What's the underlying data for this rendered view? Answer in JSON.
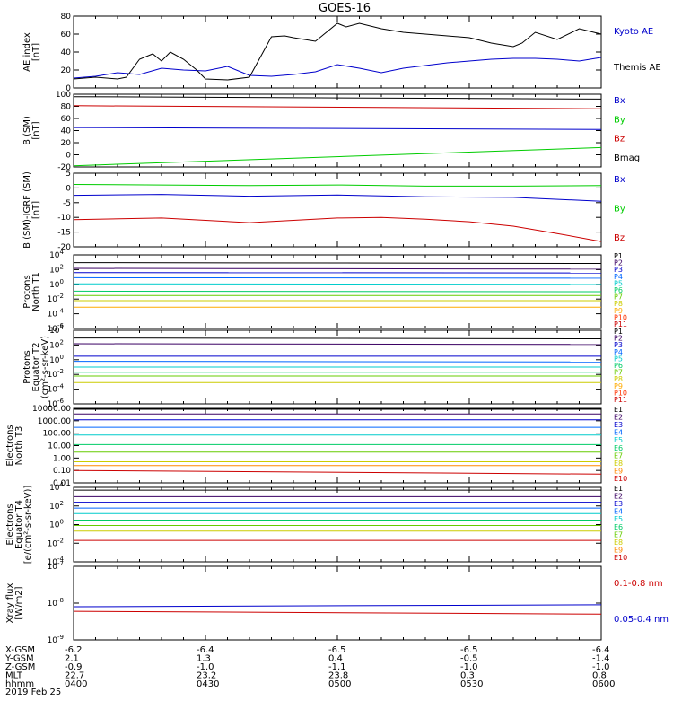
{
  "title": "GOES-16",
  "chart_data": [
    {
      "type": "line",
      "panel": "ae",
      "ylabel": [
        "AE index",
        "[nT]"
      ],
      "ylim": [
        0,
        80
      ],
      "yticks": [
        "0",
        "20",
        "40",
        "60",
        "80"
      ],
      "series": [
        {
          "name": "Kyoto AE",
          "color": "#0000cc",
          "x": [
            0,
            5,
            10,
            15,
            20,
            25,
            30,
            35,
            40,
            45,
            50,
            55,
            60,
            65,
            70,
            75,
            80,
            85,
            90,
            95,
            100,
            105,
            110,
            115,
            120
          ],
          "values": [
            11,
            13,
            17,
            15,
            22,
            20,
            19,
            24,
            14,
            13,
            15,
            18,
            26,
            22,
            17,
            22,
            25,
            28,
            30,
            32,
            33,
            33,
            32,
            30,
            34
          ]
        },
        {
          "name": "Themis AE",
          "color": "#000000",
          "x": [
            0,
            5,
            10,
            12,
            15,
            18,
            20,
            22,
            25,
            28,
            30,
            35,
            40,
            45,
            48,
            50,
            55,
            60,
            62,
            65,
            70,
            75,
            80,
            85,
            90,
            95,
            100,
            102,
            105,
            110,
            115,
            120
          ],
          "values": [
            10,
            12,
            10,
            12,
            32,
            38,
            30,
            40,
            32,
            20,
            10,
            9,
            12,
            57,
            58,
            56,
            52,
            72,
            68,
            72,
            66,
            62,
            60,
            58,
            56,
            50,
            46,
            50,
            62,
            54,
            66,
            60
          ]
        }
      ]
    },
    {
      "type": "line",
      "panel": "b_sm",
      "ylabel": [
        "B (SM)",
        "[nT]"
      ],
      "ylim": [
        -20,
        100
      ],
      "yticks": [
        "-20",
        "0",
        "20",
        "40",
        "60",
        "80",
        "100"
      ],
      "series": [
        {
          "name": "Bx",
          "color": "#0000cc",
          "x": [
            0,
            120
          ],
          "values": [
            45,
            42
          ]
        },
        {
          "name": "By",
          "color": "#00cc00",
          "x": [
            0,
            120
          ],
          "values": [
            -18,
            12
          ]
        },
        {
          "name": "Bz",
          "color": "#cc0000",
          "x": [
            0,
            120
          ],
          "values": [
            81,
            76
          ]
        },
        {
          "name": "Bmag",
          "color": "#000000",
          "x": [
            0,
            120
          ],
          "values": [
            96,
            92
          ]
        }
      ]
    },
    {
      "type": "line",
      "panel": "b_igrf",
      "ylabel": [
        "B (SM)-IGRF (SM)",
        "[nT]"
      ],
      "ylim": [
        -20,
        5
      ],
      "yticks": [
        "-20",
        "-15",
        "-10",
        "-5",
        "0",
        "5"
      ],
      "series": [
        {
          "name": "Bx",
          "color": "#0000cc",
          "x": [
            0,
            20,
            40,
            60,
            80,
            100,
            120
          ],
          "values": [
            -2.5,
            -2.2,
            -2.8,
            -2.4,
            -3.0,
            -3.2,
            -4.5
          ]
        },
        {
          "name": "By",
          "color": "#00cc00",
          "x": [
            0,
            20,
            40,
            60,
            80,
            100,
            120
          ],
          "values": [
            1.2,
            1.0,
            0.8,
            1.0,
            0.6,
            0.6,
            0.8
          ]
        },
        {
          "name": "Bz",
          "color": "#cc0000",
          "x": [
            0,
            20,
            40,
            60,
            70,
            80,
            90,
            100,
            110,
            120
          ],
          "values": [
            -10.8,
            -10.2,
            -11.8,
            -10.2,
            -10.0,
            -10.6,
            -11.5,
            -13.0,
            -15.5,
            -18.2
          ]
        }
      ]
    },
    {
      "type": "line",
      "panel": "protons_t1",
      "ylabel": [
        "Protons",
        "North T1"
      ],
      "yscale": "log",
      "ylim": [
        1e-06,
        10000
      ],
      "yticks": [
        "10^-6",
        "10^-4",
        "10^-2",
        "10^0",
        "10^2",
        "10^4"
      ],
      "series": [
        {
          "name": "P1",
          "color": "#000000",
          "values": [
            900,
            700
          ]
        },
        {
          "name": "P2",
          "color": "#3a0063",
          "values": [
            150,
            120
          ]
        },
        {
          "name": "P3",
          "color": "#0000cc",
          "values": [
            40,
            35
          ]
        },
        {
          "name": "P4",
          "color": "#0066ff",
          "values": [
            8,
            7
          ]
        },
        {
          "name": "P5",
          "color": "#00cccc",
          "values": [
            1.2,
            1.0
          ]
        },
        {
          "name": "P6",
          "color": "#00cc66",
          "values": [
            0.12,
            0.1
          ]
        },
        {
          "name": "P7",
          "color": "#66cc00",
          "values": [
            0.03,
            0.03
          ]
        },
        {
          "name": "P8",
          "color": "#cccc00",
          "values": [
            0.006,
            0.006
          ]
        },
        {
          "name": "P9",
          "color": "#ffaa00",
          "values": [
            0.0008,
            0.0008
          ]
        },
        {
          "name": "P10",
          "color": "#ff3300",
          "values": []
        },
        {
          "name": "P11",
          "color": "#cc0000",
          "values": []
        }
      ]
    },
    {
      "type": "line",
      "panel": "protons_t2",
      "ylabel": [
        "Protons",
        "Equator T2",
        "(cm²-s-sr-keV)"
      ],
      "yscale": "log",
      "ylim": [
        1e-06,
        10000
      ],
      "yticks": [
        "10^-6",
        "10^-4",
        "10^-2",
        "10^0",
        "10^2",
        "10^4"
      ],
      "series": [
        {
          "name": "P1",
          "color": "#000000",
          "values": [
            900,
            700
          ]
        },
        {
          "name": "P2",
          "color": "#3a0063",
          "values": [
            150,
            120
          ]
        },
        {
          "name": "P3",
          "color": "#0000cc",
          "values": [
            3,
            3
          ]
        },
        {
          "name": "P4",
          "color": "#0066ff",
          "values": [
            0.6,
            0.5
          ]
        },
        {
          "name": "P5",
          "color": "#00cccc",
          "values": [
            0.1,
            0.1
          ]
        },
        {
          "name": "P6",
          "color": "#00cc66",
          "values": [
            0.02,
            0.02
          ]
        },
        {
          "name": "P7",
          "color": "#66cc00",
          "values": [
            0.006,
            0.006
          ]
        },
        {
          "name": "P8",
          "color": "#cccc00",
          "values": [
            0.0008,
            0.0008
          ]
        },
        {
          "name": "P9",
          "color": "#ffaa00",
          "values": []
        },
        {
          "name": "P10",
          "color": "#ff3300",
          "values": []
        },
        {
          "name": "P11",
          "color": "#cc0000",
          "values": []
        }
      ]
    },
    {
      "type": "line",
      "panel": "electrons_t3",
      "ylabel": [
        "Electrons",
        "North T3"
      ],
      "yscale": "log",
      "ylim": [
        0.01,
        10000
      ],
      "yticks": [
        "0.01",
        "0.10",
        "1.00",
        "10.00",
        "100.00",
        "1000.00",
        "10000.00"
      ],
      "series": [
        {
          "name": "E1",
          "color": "#000000",
          "values": [
            10000,
            10000
          ]
        },
        {
          "name": "E2",
          "color": "#3a0063",
          "values": [
            3500,
            3500
          ]
        },
        {
          "name": "E3",
          "color": "#0000cc",
          "values": [
            1200,
            1200
          ]
        },
        {
          "name": "E4",
          "color": "#0066ff",
          "values": [
            300,
            300
          ]
        },
        {
          "name": "E5",
          "color": "#00cccc",
          "values": [
            70,
            70
          ]
        },
        {
          "name": "E6",
          "color": "#00cc66",
          "values": [
            12,
            12
          ]
        },
        {
          "name": "E7",
          "color": "#66cc00",
          "values": [
            3,
            3
          ]
        },
        {
          "name": "E8",
          "color": "#cccc00",
          "values": [
            0.5,
            0.5
          ]
        },
        {
          "name": "E9",
          "color": "#ff8800",
          "values": [
            0.25,
            0.25
          ]
        },
        {
          "name": "E10",
          "color": "#cc0000",
          "values": [
            0.1,
            0.05
          ]
        }
      ]
    },
    {
      "type": "line",
      "panel": "electrons_t4",
      "ylabel": [
        "Electrons",
        "Equator T4",
        "[e/(cm²-s-sr-keV)]"
      ],
      "yscale": "log",
      "ylim": [
        0.0001,
        10000
      ],
      "yticks": [
        "10^-4",
        "10^-2",
        "10^0",
        "10^2",
        "10^4"
      ],
      "series": [
        {
          "name": "E1",
          "color": "#000000",
          "values": [
            5000,
            5000
          ]
        },
        {
          "name": "E2",
          "color": "#3a0063",
          "values": [
            1000,
            1000
          ]
        },
        {
          "name": "E3",
          "color": "#0000cc",
          "values": [
            250,
            250
          ]
        },
        {
          "name": "E4",
          "color": "#0066ff",
          "values": [
            60,
            60
          ]
        },
        {
          "name": "E5",
          "color": "#00cccc",
          "values": [
            15,
            15
          ]
        },
        {
          "name": "E6",
          "color": "#00cc66",
          "values": [
            3,
            3
          ]
        },
        {
          "name": "E7",
          "color": "#66cc00",
          "values": [
            0.8,
            0.8
          ]
        },
        {
          "name": "E8",
          "color": "#cccc00",
          "values": [
            0.2,
            0.2
          ]
        },
        {
          "name": "E9",
          "color": "#ff8800",
          "values": []
        },
        {
          "name": "E10",
          "color": "#cc0000",
          "values": [
            0.02,
            0.02
          ]
        }
      ]
    },
    {
      "type": "line",
      "panel": "xray",
      "ylabel": [
        "Xray flux",
        "[W/m2]"
      ],
      "yscale": "log",
      "ylim": [
        1e-09,
        1e-07
      ],
      "yticks": [
        "10^-9",
        "10^-8",
        "10^-7"
      ],
      "series": [
        {
          "name": "0.1-0.8 nm",
          "color": "#cc0000",
          "values": [
            6e-09,
            5e-09
          ]
        },
        {
          "name": "0.05-0.4 nm",
          "color": "#0000cc",
          "values": [
            8e-09,
            9e-09
          ]
        }
      ]
    }
  ],
  "axis_rows": [
    {
      "label": "X-GSM",
      "values": [
        "-6.2",
        "-6.4",
        "-6.5",
        "-6.5",
        "-6.4"
      ]
    },
    {
      "label": "Y-GSM",
      "values": [
        "2.1",
        "1.3",
        "0.4",
        "-0.5",
        "-1.4"
      ]
    },
    {
      "label": "Z-GSM",
      "values": [
        "-0.9",
        "-1.0",
        "-1.1",
        "-1.0",
        "-1.0"
      ]
    },
    {
      "label": "MLT",
      "values": [
        "22.7",
        "23.2",
        "23.8",
        "0.3",
        "0.8"
      ]
    },
    {
      "label": "hhmm",
      "values": [
        "0400",
        "0430",
        "0500",
        "0530",
        "0600"
      ]
    }
  ],
  "date_label": "2019 Feb 25"
}
